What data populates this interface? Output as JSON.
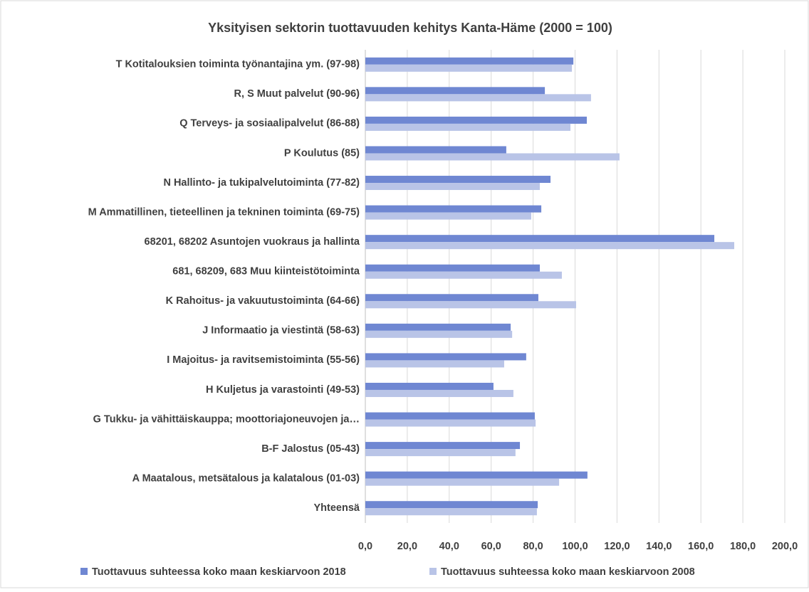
{
  "chart_data": {
    "type": "hbar",
    "title": "Yksityisen sektorin tuottavuuden kehitys Kanta-Häme (2000 = 100)",
    "categories": [
      "T Kotitalouksien toiminta työnantajina ym. (97-98)",
      "R, S Muut palvelut (90-96)",
      "Q Terveys- ja sosiaalipalvelut (86-88)",
      "P Koulutus (85)",
      "N Hallinto- ja tukipalvelutoiminta (77-82)",
      "M Ammatillinen, tieteellinen ja tekninen toiminta (69-75)",
      "68201, 68202 Asuntojen vuokraus ja hallinta",
      "681, 68209, 683 Muu kiinteistötoiminta",
      "K Rahoitus- ja vakuutustoiminta (64-66)",
      "J Informaatio ja viestintä (58-63)",
      "I Majoitus- ja ravitsemistoiminta (55-56)",
      "H Kuljetus ja varastointi (49-53)",
      "G Tukku- ja vähittäiskauppa; moottoriajoneuvojen ja…",
      "B-F Jalostus (05-43)",
      "A Maatalous, metsätalous ja kalatalous (01-03)",
      "Yhteensä"
    ],
    "series": [
      {
        "name": "Tuottavuus suhteessa koko maan keskiarvoon 2018",
        "color": "#6f87d2",
        "values": [
          99.2,
          85.6,
          105.6,
          67.2,
          88.3,
          83.9,
          166.4,
          83.2,
          82.5,
          69.3,
          76.7,
          61.1,
          80.8,
          73.7,
          105.9,
          82.2
        ]
      },
      {
        "name": "Tuottavuus suhteessa koko maan keskiarvoon 2008",
        "color": "#b9c4e7",
        "values": [
          98.5,
          107.6,
          97.8,
          121.2,
          83.2,
          79.1,
          175.9,
          93.7,
          100.5,
          70.0,
          66.2,
          70.6,
          81.2,
          71.6,
          92.4,
          81.8
        ]
      }
    ],
    "xlim": [
      0,
      200
    ],
    "xticks": [
      {
        "value": 0,
        "label": "0,0"
      },
      {
        "value": 20,
        "label": "20,0"
      },
      {
        "value": 40,
        "label": "40,0"
      },
      {
        "value": 60,
        "label": "60,0"
      },
      {
        "value": 80,
        "label": "80,0"
      },
      {
        "value": 100,
        "label": "100,0"
      },
      {
        "value": 120,
        "label": "120,0"
      },
      {
        "value": 140,
        "label": "140,0"
      },
      {
        "value": 160,
        "label": "160,0"
      },
      {
        "value": 180,
        "label": "180,0"
      },
      {
        "value": 200,
        "label": "200,0"
      }
    ],
    "grid": true
  }
}
